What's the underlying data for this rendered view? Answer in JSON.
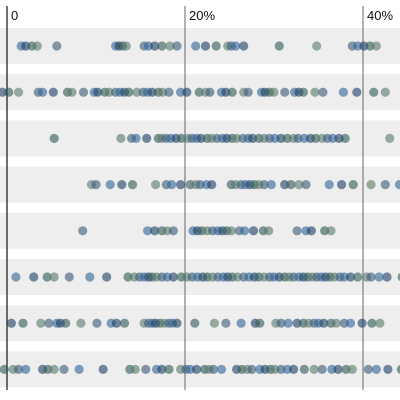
{
  "chart_data": {
    "type": "scatter",
    "xlim": [
      0,
      45
    ],
    "x_unit": "percent",
    "x_ticks": [
      {
        "value": 0,
        "label": "0"
      },
      {
        "value": 20,
        "label": "20%"
      },
      {
        "value": 40,
        "label": "40%"
      }
    ],
    "grid": true,
    "legend": "none",
    "rows": [
      {
        "points": [
          1.6,
          2.1,
          2.8,
          3.4,
          5.6,
          12.2,
          12.6,
          13.0,
          13.4,
          15.4,
          15.9,
          16.6,
          17.4,
          18.3,
          19.1,
          21.2,
          22.3,
          23.5,
          24.8,
          25.2,
          25.7,
          26.6,
          30.6,
          34.8,
          38.8,
          39.4,
          40.1,
          40.8,
          41.5
        ]
      },
      {
        "points": [
          -0.5,
          0.2,
          1.3,
          3.5,
          4.0,
          5.2,
          6.8,
          7.3,
          8.6,
          9.8,
          10.2,
          11.0,
          11.5,
          12.2,
          12.7,
          13.2,
          13.7,
          14.6,
          15.3,
          15.8,
          16.3,
          17.0,
          17.5,
          18.2,
          19.5,
          20.2,
          21.6,
          22.3,
          22.8,
          24.1,
          24.6,
          25.3,
          26.6,
          27.1,
          28.6,
          29.0,
          29.5,
          30.0,
          31.2,
          32.3,
          32.8,
          33.3,
          34.6,
          35.5,
          37.8,
          39.3,
          41.2,
          42.5
        ]
      },
      {
        "points": [
          5.3,
          12.8,
          14.0,
          14.5,
          15.7,
          17.0,
          17.4,
          17.9,
          18.4,
          19.0,
          19.6,
          20.3,
          20.8,
          21.3,
          21.8,
          22.5,
          23.0,
          23.6,
          24.2,
          24.7,
          25.3,
          25.8,
          26.5,
          27.1,
          27.6,
          28.3,
          28.9,
          29.5,
          30.1,
          30.8,
          31.5,
          32.2,
          32.7,
          33.4,
          34.1,
          34.7,
          35.4,
          36.0,
          36.6,
          37.3,
          38.0,
          43.0
        ]
      },
      {
        "points": [
          9.5,
          10.0,
          11.6,
          12.9,
          14.1,
          16.7,
          17.9,
          18.5,
          19.5,
          20.6,
          21.2,
          21.7,
          22.4,
          23.0,
          25.2,
          25.7,
          26.3,
          26.8,
          27.3,
          27.8,
          28.3,
          28.9,
          29.7,
          31.2,
          31.9,
          32.8,
          33.6,
          36.2,
          37.6,
          38.9,
          40.9,
          42.5,
          44.1
        ]
      },
      {
        "points": [
          8.5,
          15.8,
          16.6,
          17.4,
          18.0,
          18.7,
          20.9,
          21.4,
          21.9,
          22.5,
          23.1,
          23.7,
          24.2,
          24.7,
          25.2,
          26.1,
          26.7,
          27.7,
          28.8,
          29.4,
          32.6,
          33.6,
          34.2,
          35.7,
          36.4
        ]
      },
      {
        "points": [
          1.0,
          3.0,
          4.5,
          5.3,
          7.0,
          9.3,
          11.2,
          13.6,
          14.3,
          14.9,
          15.4,
          15.9,
          16.3,
          16.8,
          17.4,
          18.0,
          18.7,
          19.6,
          20.2,
          20.8,
          21.4,
          22.0,
          22.5,
          23.1,
          23.7,
          24.3,
          24.8,
          25.3,
          25.9,
          26.6,
          27.2,
          27.8,
          28.3,
          28.9,
          29.5,
          30.0,
          30.6,
          31.2,
          31.7,
          32.2,
          32.8,
          33.3,
          33.8,
          34.3,
          34.8,
          35.3,
          35.8,
          36.3,
          36.8,
          37.4,
          37.9,
          38.6,
          39.4,
          40.4,
          40.9,
          41.8,
          42.7,
          44.4
        ]
      },
      {
        "points": [
          0.5,
          1.8,
          3.8,
          4.7,
          5.6,
          6.0,
          6.6,
          8.3,
          10.1,
          11.7,
          12.3,
          13.2,
          15.4,
          15.9,
          16.3,
          16.7,
          17.2,
          17.7,
          18.2,
          18.6,
          19.1,
          21.1,
          23.3,
          24.6,
          26.3,
          27.9,
          28.4,
          30.2,
          30.8,
          31.6,
          32.6,
          33.3,
          33.9,
          34.5,
          35.0,
          35.6,
          36.4,
          37.0,
          37.9,
          38.6,
          39.9,
          41.0,
          41.9
        ]
      },
      {
        "points": [
          -0.3,
          0.7,
          1.3,
          2.1,
          4.0,
          4.6,
          5.3,
          6.4,
          8.1,
          10.8,
          13.8,
          14.4,
          15.6,
          16.8,
          17.4,
          18.2,
          19.5,
          20.1,
          20.6,
          21.3,
          22.2,
          22.7,
          23.2,
          24.1,
          25.8,
          26.4,
          27.0,
          27.5,
          28.4,
          29.0,
          29.6,
          30.1,
          30.8,
          31.5,
          32.2,
          33.4,
          34.5,
          35.4,
          36.5,
          37.2,
          38.1,
          38.8,
          40.6,
          41.5,
          42.8,
          44.3
        ]
      }
    ]
  },
  "colors": {
    "band": "#eeeeee",
    "palette": [
      "#2e6494",
      "#1d3f66",
      "#2f5a55",
      "#5a7a6a",
      "#3a5a78"
    ]
  }
}
